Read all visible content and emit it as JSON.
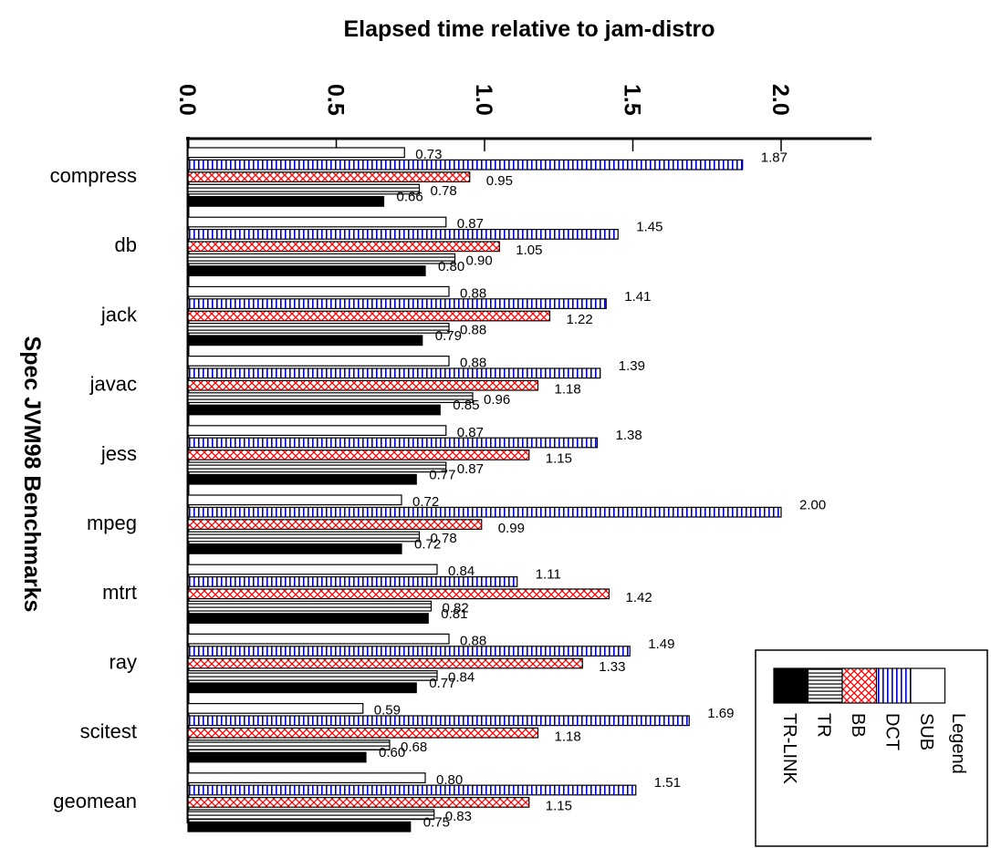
{
  "chart_data": {
    "type": "bar",
    "orientation": "horizontal",
    "title": "Elapsed time relative to jam-distro",
    "ylabel": "Spec JVM98 Benchmarks",
    "xlim": [
      0,
      2.3
    ],
    "xticks": [
      "0.0",
      "0.5",
      "1.0",
      "1.5",
      "2.0"
    ],
    "categories": [
      "compress",
      "db",
      "jack",
      "javac",
      "jess",
      "mpeg",
      "mtrt",
      "ray",
      "scitest",
      "geomean"
    ],
    "series": [
      {
        "name": "SUB",
        "values": [
          0.73,
          0.87,
          0.88,
          0.88,
          0.87,
          0.72,
          0.84,
          0.88,
          0.59,
          0.8
        ],
        "labels": [
          "0.73",
          "0.87",
          "0.88",
          "0.88",
          "0.87",
          "0.72",
          "0.84",
          "0.88",
          "0.59",
          "0.80"
        ]
      },
      {
        "name": "DCT",
        "values": [
          1.87,
          1.45,
          1.41,
          1.39,
          1.38,
          2.0,
          1.11,
          1.49,
          1.69,
          1.51
        ],
        "labels": [
          "1.87",
          "1.45",
          "1.41",
          "1.39",
          "1.38",
          "2.00",
          "1.11",
          "1.49",
          "1.69",
          "1.51"
        ]
      },
      {
        "name": "BB",
        "values": [
          0.95,
          1.05,
          1.22,
          1.18,
          1.15,
          0.99,
          1.42,
          1.33,
          1.18,
          1.15
        ],
        "labels": [
          "0.95",
          "1.05",
          "1.22",
          "1.18",
          "1.15",
          "0.99",
          "1.42",
          "1.33",
          "1.18",
          "1.15"
        ]
      },
      {
        "name": "TR",
        "values": [
          0.78,
          0.9,
          0.88,
          0.96,
          0.87,
          0.78,
          0.82,
          0.84,
          0.68,
          0.83
        ],
        "labels": [
          "0.78",
          "0.90",
          "0.88",
          "0.96",
          "0.87",
          "0.78",
          "0.82",
          "0.84",
          "0.68",
          "0.83"
        ]
      },
      {
        "name": "TR-LINK",
        "values": [
          0.66,
          0.8,
          0.79,
          0.85,
          0.77,
          0.72,
          0.81,
          0.77,
          0.6,
          0.75
        ],
        "labels": [
          "0.66",
          "0.80",
          "0.79",
          "0.85",
          "0.77",
          "0.72",
          "0.81",
          "0.77",
          "0.60",
          "0.75"
        ]
      }
    ],
    "legend": {
      "title": "Legend",
      "position": "bottom-right"
    },
    "colors": {
      "BB": "#ff0000",
      "DCT": "#0000cc",
      "axis": "#000000"
    }
  }
}
